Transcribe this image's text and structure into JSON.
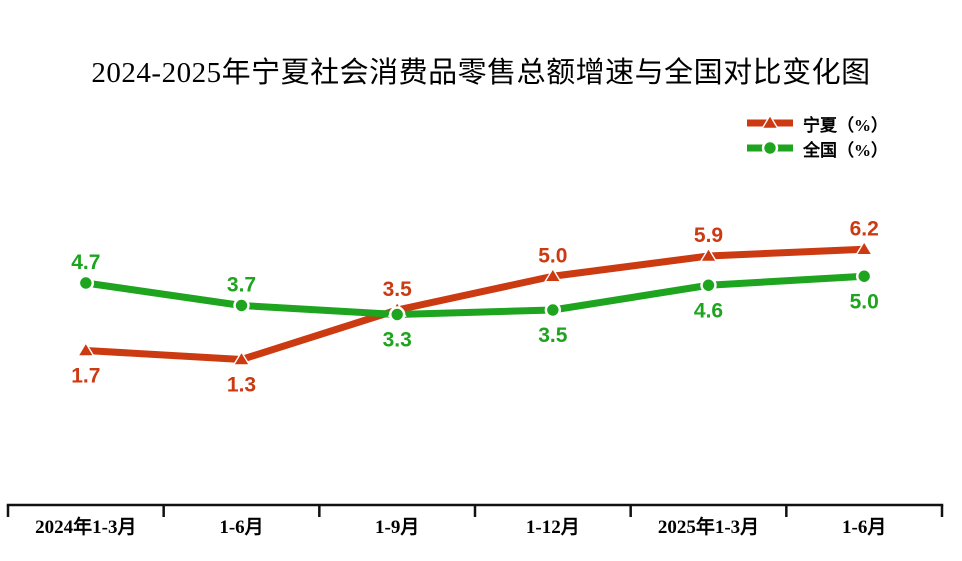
{
  "title": "2024-2025年宁夏社会消费品零售总额增速与全国对比变化图",
  "chart_data": {
    "type": "line",
    "title": "2024-2025年宁夏社会消费品零售总额增速与全国对比变化图",
    "categories": [
      "2024年1-3月",
      "1-6月",
      "1-9月",
      "1-12月",
      "2025年1-3月",
      "1-6月"
    ],
    "series": [
      {
        "name": "宁夏（%）",
        "marker": "triangle",
        "color": "#cc3a12",
        "values": [
          1.7,
          1.3,
          3.5,
          5.0,
          5.9,
          6.2
        ],
        "label_positions": [
          "below",
          "below",
          "above",
          "above",
          "above",
          "above"
        ]
      },
      {
        "name": "全国（%）",
        "marker": "circle",
        "color": "#1ea41e",
        "values": [
          4.7,
          3.7,
          3.3,
          3.5,
          4.6,
          5.0
        ],
        "label_positions": [
          "above",
          "above",
          "below",
          "below",
          "below",
          "below"
        ]
      }
    ],
    "xlabel": "",
    "ylabel": "",
    "ylim": [
      0,
      7
    ],
    "grid": false,
    "y_axis_visible": false,
    "legend_position": "top-right",
    "axis_color": "#111111",
    "background_color": "#ffffff"
  }
}
